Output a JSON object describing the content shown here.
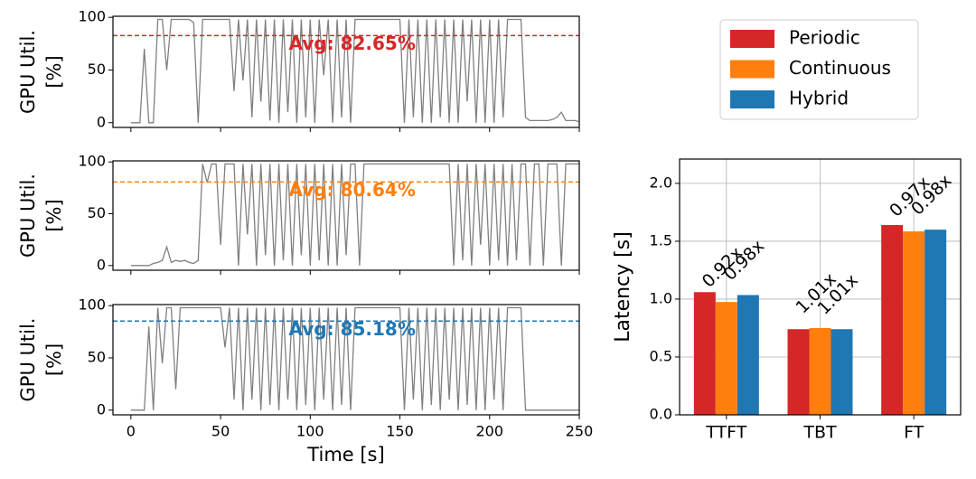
{
  "chart_data": [
    {
      "type": "line",
      "ylabel": [
        "GPU Util.",
        "[%]"
      ],
      "color": "#808080",
      "x": [
        0,
        2.5,
        5,
        7.5,
        10,
        12.5,
        15,
        17.5,
        20,
        22.5,
        25,
        27.5,
        30,
        32.5,
        35,
        37.5,
        40,
        42.5,
        45,
        47.5,
        50,
        52.5,
        55,
        57.5,
        60,
        62.5,
        65,
        67.5,
        70,
        72.5,
        75,
        77.5,
        80,
        82.5,
        85,
        87.5,
        90,
        92.5,
        95,
        97.5,
        100,
        102.5,
        105,
        107.5,
        110,
        112.5,
        115,
        117.5,
        120,
        122.5,
        125,
        127.5,
        130,
        132.5,
        135,
        137.5,
        140,
        142.5,
        145,
        147.5,
        150,
        152.5,
        155,
        157.5,
        160,
        162.5,
        165,
        167.5,
        170,
        172.5,
        175,
        177.5,
        180,
        182.5,
        185,
        187.5,
        190,
        192.5,
        195,
        197.5,
        200,
        202.5,
        205,
        207.5,
        210,
        212.5,
        215,
        217.5,
        220,
        222.5,
        225,
        227.5,
        230,
        232.5,
        235,
        237.5,
        240,
        242.5,
        245,
        247.5,
        250
      ],
      "values": [
        0,
        0,
        0,
        70,
        0,
        0,
        98,
        98,
        50,
        98,
        98,
        98,
        98,
        98,
        95,
        0,
        98,
        98,
        98,
        98,
        98,
        98,
        98,
        30,
        98,
        40,
        98,
        5,
        98,
        20,
        98,
        2,
        98,
        0,
        98,
        10,
        98,
        0,
        98,
        5,
        98,
        0,
        98,
        45,
        98,
        0,
        98,
        5,
        98,
        0,
        98,
        98,
        98,
        98,
        98,
        98,
        98,
        98,
        98,
        98,
        98,
        0,
        98,
        5,
        98,
        0,
        98,
        0,
        98,
        5,
        98,
        0,
        98,
        0,
        98,
        20,
        98,
        0,
        98,
        0,
        98,
        0,
        98,
        5,
        98,
        98,
        98,
        98,
        5,
        2,
        2,
        2,
        2,
        2,
        3,
        5,
        10,
        2,
        2,
        2,
        1
      ],
      "avg_line": {
        "value": 82.65,
        "color": "#d62728",
        "label": "Avg: 82.65%"
      },
      "xlim": [
        -10,
        250
      ],
      "xticks": [
        0,
        50,
        100,
        150,
        200,
        250
      ],
      "ylim": [
        -4.5,
        101
      ],
      "yticks": [
        0,
        50,
        100
      ]
    },
    {
      "type": "line",
      "ylabel": [
        "GPU Util.",
        "[%]"
      ],
      "color": "#808080",
      "x": [
        0,
        2.5,
        5,
        7.5,
        10,
        12.5,
        15,
        17.5,
        20,
        22.5,
        25,
        27.5,
        30,
        32.5,
        35,
        37.5,
        40,
        42.5,
        45,
        47.5,
        50,
        52.5,
        55,
        57.5,
        60,
        62.5,
        65,
        67.5,
        70,
        72.5,
        75,
        77.5,
        80,
        82.5,
        85,
        87.5,
        90,
        92.5,
        95,
        97.5,
        100,
        102.5,
        105,
        107.5,
        110,
        112.5,
        115,
        117.5,
        120,
        122.5,
        125,
        127.5,
        130,
        132.5,
        135,
        137.5,
        140,
        142.5,
        145,
        147.5,
        150,
        152.5,
        155,
        157.5,
        160,
        162.5,
        165,
        167.5,
        170,
        172.5,
        175,
        177.5,
        180,
        182.5,
        185,
        187.5,
        190,
        192.5,
        195,
        197.5,
        200,
        202.5,
        205,
        207.5,
        210,
        212.5,
        215,
        217.5,
        220,
        222.5,
        225,
        227.5,
        230,
        232.5,
        235,
        237.5,
        240,
        242.5,
        245,
        247.5,
        250
      ],
      "values": [
        0,
        0,
        0,
        0,
        0,
        2,
        3,
        5,
        18,
        3,
        5,
        4,
        5,
        3,
        2,
        5,
        98,
        80,
        98,
        98,
        20,
        98,
        98,
        98,
        0,
        98,
        30,
        98,
        0,
        98,
        10,
        98,
        0,
        98,
        5,
        98,
        0,
        98,
        10,
        98,
        0,
        98,
        5,
        98,
        0,
        98,
        0,
        98,
        10,
        98,
        98,
        0,
        98,
        98,
        98,
        98,
        98,
        98,
        98,
        98,
        98,
        98,
        98,
        98,
        98,
        98,
        98,
        98,
        98,
        98,
        98,
        98,
        0,
        98,
        5,
        98,
        0,
        98,
        20,
        98,
        0,
        98,
        5,
        98,
        0,
        98,
        5,
        98,
        98,
        0,
        98,
        98,
        0,
        98,
        98,
        98,
        0,
        98,
        98,
        98,
        98
      ],
      "avg_line": {
        "value": 80.64,
        "color": "#ff7f0e",
        "label": "Avg: 80.64%"
      },
      "xlim": [
        -10,
        250
      ],
      "xticks": [
        0,
        50,
        100,
        150,
        200,
        250
      ],
      "ylim": [
        -4.5,
        101
      ],
      "yticks": [
        0,
        50,
        100
      ]
    },
    {
      "type": "line",
      "ylabel": [
        "GPU Util.",
        "[%]"
      ],
      "xlabel": "Time [s]",
      "color": "#808080",
      "x": [
        0,
        2.5,
        5,
        7.5,
        10,
        12.5,
        15,
        17.5,
        20,
        22.5,
        25,
        27.5,
        30,
        32.5,
        35,
        37.5,
        40,
        42.5,
        45,
        47.5,
        50,
        52.5,
        55,
        57.5,
        60,
        62.5,
        65,
        67.5,
        70,
        72.5,
        75,
        77.5,
        80,
        82.5,
        85,
        87.5,
        90,
        92.5,
        95,
        97.5,
        100,
        102.5,
        105,
        107.5,
        110,
        112.5,
        115,
        117.5,
        120,
        122.5,
        125,
        127.5,
        130,
        132.5,
        135,
        137.5,
        140,
        142.5,
        145,
        147.5,
        150,
        152.5,
        155,
        157.5,
        160,
        162.5,
        165,
        167.5,
        170,
        172.5,
        175,
        177.5,
        180,
        182.5,
        185,
        187.5,
        190,
        192.5,
        195,
        197.5,
        200,
        202.5,
        205,
        207.5,
        210,
        212.5,
        215,
        217.5,
        220,
        222.5,
        225,
        227.5,
        230,
        232.5,
        235,
        237.5,
        240,
        242.5,
        245,
        247.5,
        250
      ],
      "values": [
        0,
        0,
        0,
        0,
        80,
        0,
        98,
        45,
        98,
        98,
        20,
        98,
        98,
        98,
        98,
        98,
        98,
        98,
        98,
        98,
        98,
        60,
        98,
        10,
        98,
        0,
        98,
        10,
        98,
        0,
        98,
        5,
        98,
        0,
        98,
        10,
        98,
        0,
        98,
        5,
        98,
        0,
        98,
        10,
        98,
        0,
        98,
        5,
        98,
        0,
        98,
        98,
        98,
        98,
        98,
        98,
        98,
        98,
        98,
        98,
        98,
        0,
        98,
        10,
        98,
        0,
        98,
        5,
        98,
        0,
        98,
        10,
        98,
        0,
        98,
        5,
        98,
        0,
        98,
        0,
        98,
        10,
        98,
        0,
        98,
        98,
        98,
        98,
        0,
        0,
        0,
        0,
        0,
        0,
        0,
        0,
        0,
        0,
        0,
        0,
        0
      ],
      "avg_line": {
        "value": 85.18,
        "color": "#1f77b4",
        "label": "Avg: 85.18%"
      },
      "xlim": [
        -10,
        250
      ],
      "xticks": [
        0,
        50,
        100,
        150,
        200,
        250
      ],
      "ylim": [
        -4.5,
        101
      ],
      "yticks": [
        0,
        50,
        100
      ]
    },
    {
      "type": "bar",
      "ylabel": "Latency [s]",
      "categories": [
        "TTFT",
        "TBT",
        "FT"
      ],
      "series": [
        {
          "name": "Periodic",
          "color": "#d62728",
          "values": [
            1.06,
            0.74,
            1.64
          ]
        },
        {
          "name": "Continuous",
          "color": "#ff7f0e",
          "values": [
            0.975,
            0.75,
            1.585
          ],
          "ratio_labels": [
            "0.92x",
            "1.01x",
            "0.97x"
          ]
        },
        {
          "name": "Hybrid",
          "color": "#1f77b4",
          "values": [
            1.035,
            0.74,
            1.6
          ],
          "ratio_labels": [
            "0.98x",
            "1.01x",
            "0.98x"
          ]
        }
      ],
      "ylim": [
        0,
        2.21
      ],
      "yticks": [
        {
          "value": 0,
          "label": "0.0"
        },
        0.5,
        {
          "value": 1,
          "label": "1.0"
        },
        1.5,
        {
          "value": 2,
          "label": "2.0"
        }
      ],
      "grid": true,
      "legend": "above"
    }
  ]
}
